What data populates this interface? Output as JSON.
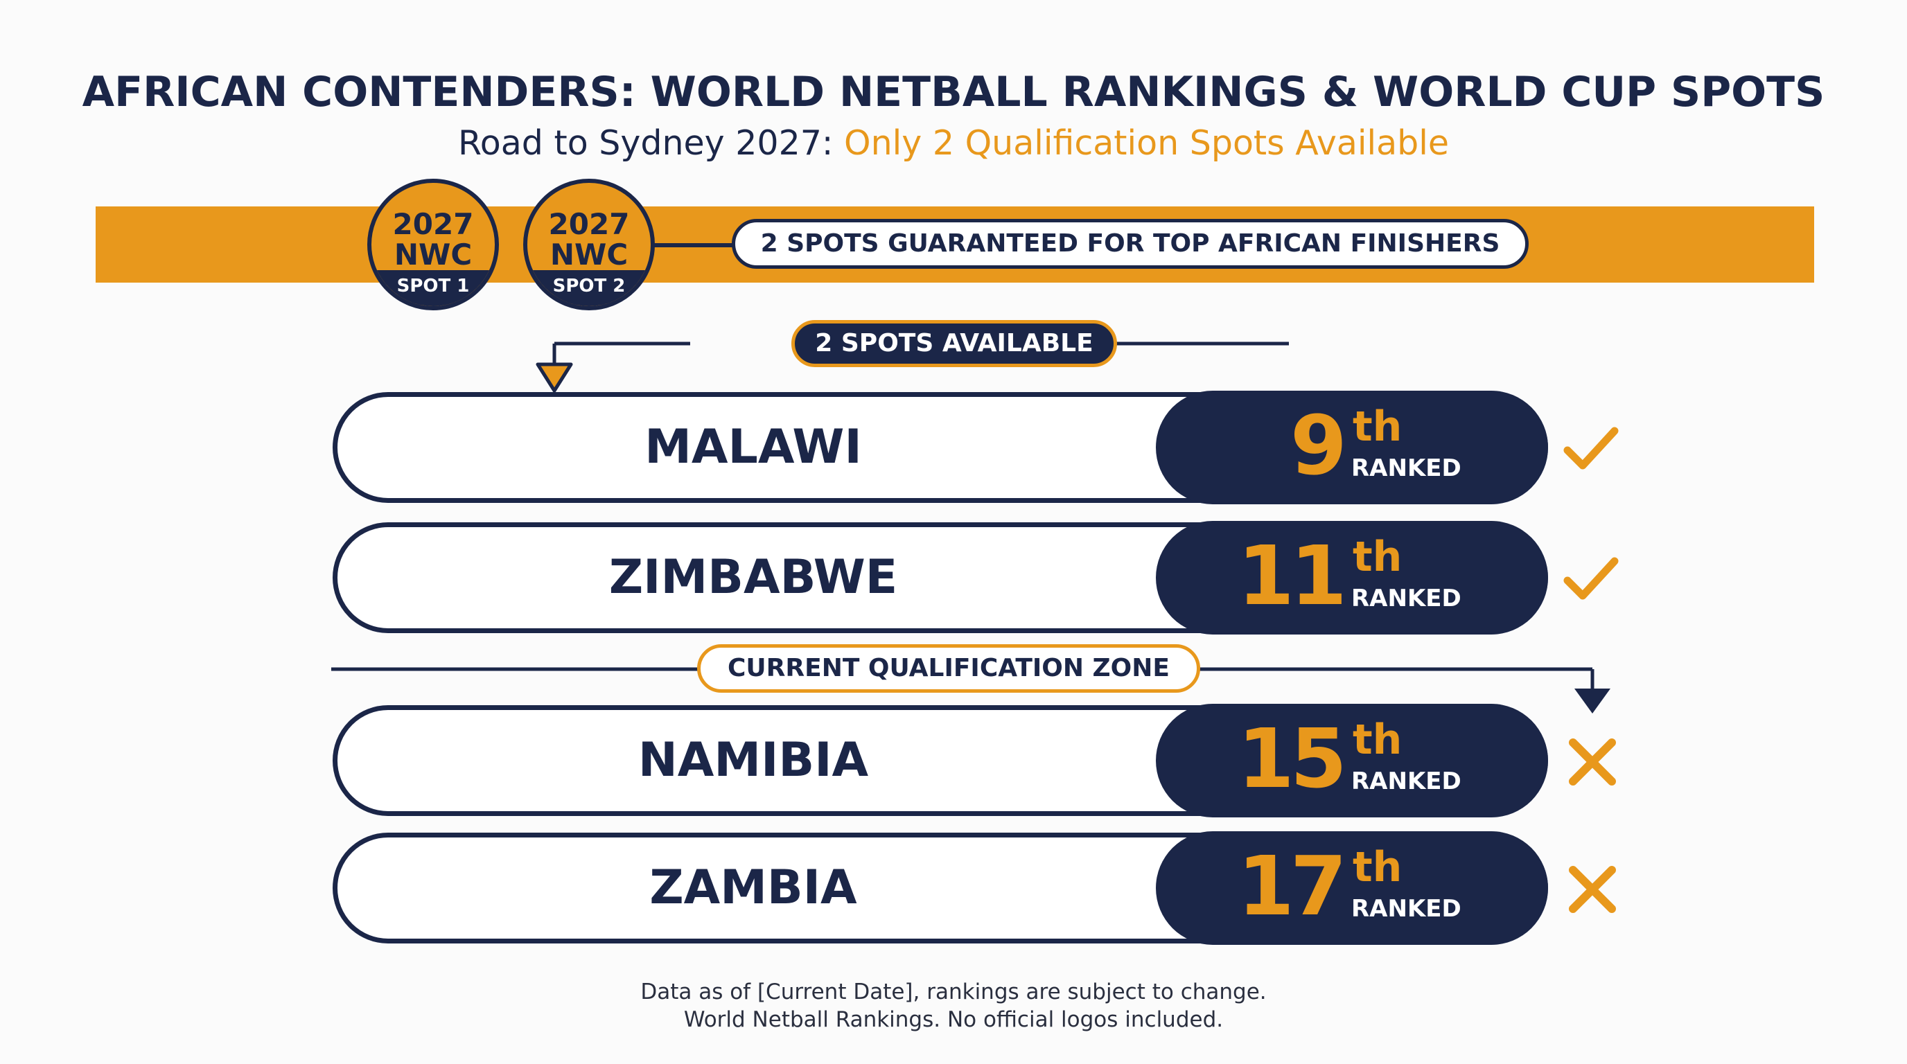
{
  "header": {
    "title": "AFRICAN CONTENDERS: WORLD NETBALL RANKINGS & WORLD CUP SPOTS",
    "subtitle_prefix": "Road to Sydney 2027: ",
    "subtitle_highlight": "Only 2 Qualification Spots Available"
  },
  "banner": {
    "badges": [
      {
        "year": "2027",
        "event": "NWC",
        "spot": "SPOT 1"
      },
      {
        "year": "2027",
        "event": "NWC",
        "spot": "SPOT 2"
      }
    ],
    "guarantee_label": "2 SPOTS GUARANTEED FOR TOP AFRICAN FINISHERS"
  },
  "spots_available_label": "2 SPOTS AVAILABLE",
  "qualification_zone_label": "CURRENT QUALIFICATION ZONE",
  "teams": [
    {
      "country": "MALAWI",
      "rank": "9",
      "suffix": "th",
      "rank_label": "RANKED",
      "status": "qualified"
    },
    {
      "country": "ZIMBABWE",
      "rank": "11",
      "suffix": "th",
      "rank_label": "RANKED",
      "status": "qualified"
    },
    {
      "country": "NAMIBIA",
      "rank": "15",
      "suffix": "th",
      "rank_label": "RANKED",
      "status": "not-qualified"
    },
    {
      "country": "ZAMBIA",
      "rank": "17",
      "suffix": "th",
      "rank_label": "RANKED",
      "status": "not-qualified"
    }
  ],
  "footnote": {
    "line1": "Data as of [Current Date], rankings are subject to change.",
    "line2": "World Netball Rankings. No official logos included."
  },
  "colors": {
    "navy": "#1b2648",
    "orange": "#e8981c",
    "background": "#fbfbfb"
  },
  "icons": {
    "qualified": "check-icon",
    "not_qualified": "cross-icon"
  }
}
